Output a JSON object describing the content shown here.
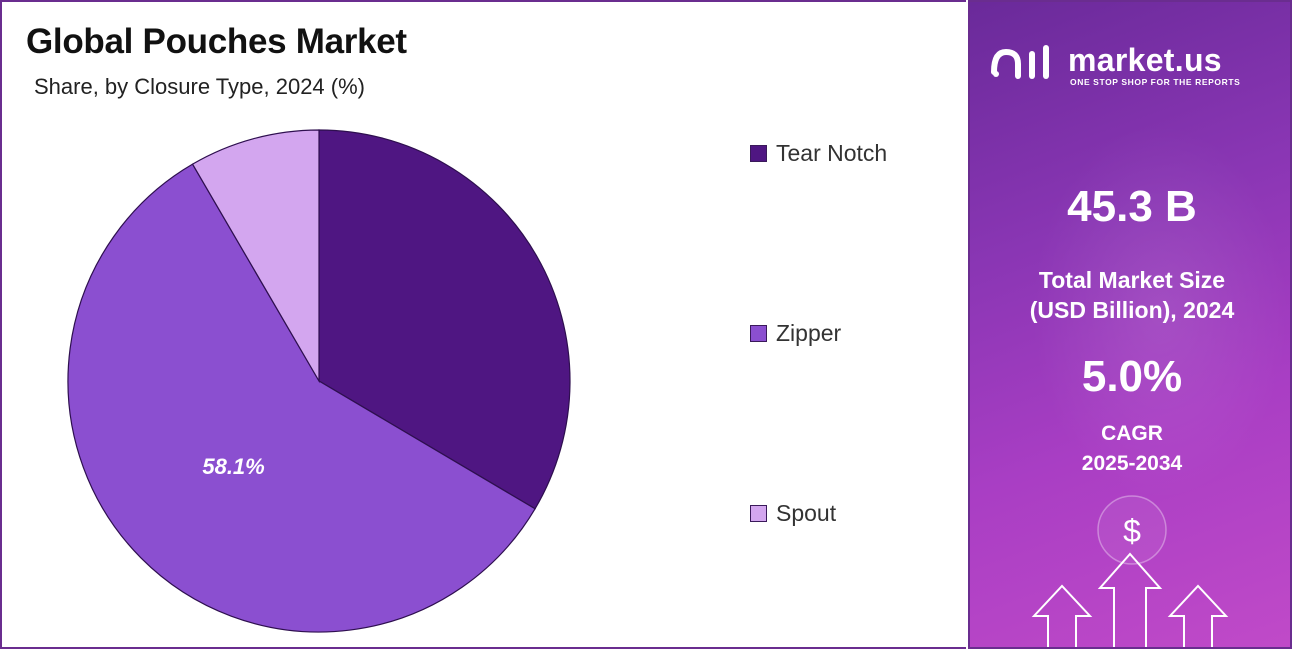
{
  "header": {
    "title": "Global Pouches Market",
    "subtitle": "Share, by Closure Type, 2024 (%)"
  },
  "chart_data": {
    "type": "pie",
    "categories": [
      "Tear Notch",
      "Zipper",
      "Spout"
    ],
    "values": [
      33.5,
      58.1,
      8.4
    ],
    "colors": [
      "#4f1682",
      "#8b4fd0",
      "#d3a6ef"
    ],
    "data_labels": [
      "",
      "58.1%",
      ""
    ],
    "legend_position": "right",
    "title": "Global Pouches Market",
    "subtitle": "Share, by Closure Type, 2024 (%)"
  },
  "legend": {
    "items": [
      {
        "label": "Tear Notch",
        "color": "#4f1682"
      },
      {
        "label": "Zipper",
        "color": "#8b4fd0"
      },
      {
        "label": "Spout",
        "color": "#d3a6ef"
      }
    ]
  },
  "brand": {
    "name": "market.us",
    "tagline": "ONE STOP SHOP FOR THE REPORTS"
  },
  "stats": {
    "market_size_value": "45.3 B",
    "market_size_label_line1": "Total Market Size",
    "market_size_label_line2": "(USD Billion), 2024",
    "cagr_value": "5.0%",
    "cagr_label_line1": "CAGR",
    "cagr_label_line2": "2025-2034"
  },
  "decor": {
    "currency_symbol": "$",
    "icons": [
      "dollar-coin-icon",
      "up-arrow-icon"
    ]
  }
}
